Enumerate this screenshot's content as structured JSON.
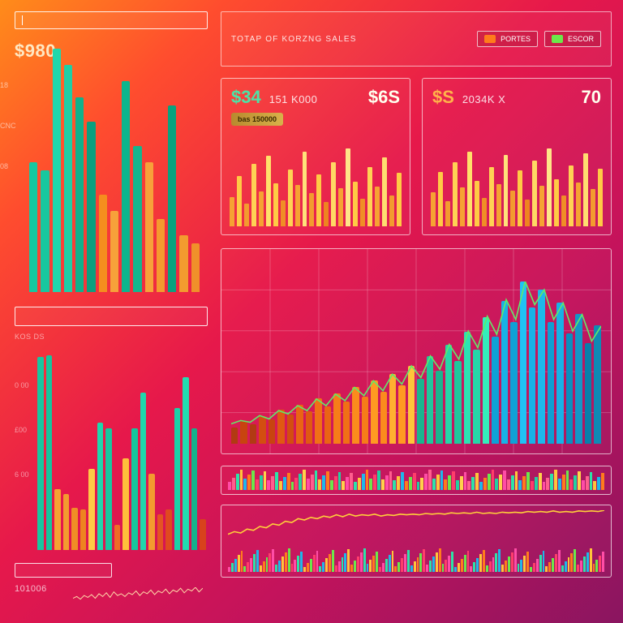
{
  "background_gradient": [
    "#ff8c1a",
    "#ff4d2e",
    "#e6184b",
    "#c3135c",
    "#8a1560"
  ],
  "left": {
    "search_placeholder": "",
    "kpi": "$980",
    "kpi_sub": "",
    "y_labels": [
      "18",
      "CNC",
      "08"
    ],
    "divider_label": "KOS  DS",
    "y_labels2": [
      "0 00",
      "£00",
      "6 00"
    ],
    "footer_label": "101006",
    "footer_spark": {
      "points": [
        4,
        6,
        3,
        7,
        5,
        8,
        4,
        9,
        6,
        10,
        5,
        11,
        7,
        9,
        6,
        10,
        8,
        12,
        7,
        11,
        9,
        13,
        8,
        12,
        10,
        14,
        9,
        13,
        11,
        15,
        10,
        14,
        12,
        16,
        11,
        15
      ],
      "stroke": "#ffd8a8",
      "width": 1
    },
    "chart_top": {
      "type": "bar",
      "values": [
        160,
        150,
        300,
        280,
        240,
        210,
        120,
        100,
        260,
        180,
        160,
        90,
        230,
        70,
        60
      ],
      "colors": [
        "#15c8a0",
        "#18c79f",
        "#1fd7ac",
        "#1fcfa5",
        "#0fb28b",
        "#0aa07f",
        "#f58e1e",
        "#f7a13a",
        "#0cb58d",
        "#14b68e",
        "#f7a13a",
        "#f59a2e",
        "#08a37f",
        "#f39b2f",
        "#f0902a"
      ]
    },
    "chart_bottom": {
      "type": "bar",
      "values": [
        228,
        230,
        72,
        66,
        50,
        48,
        96,
        150,
        144,
        30,
        108,
        144,
        186,
        90,
        42,
        48,
        168,
        204,
        144,
        36
      ],
      "colors": [
        "#18c79f",
        "#16c59d",
        "#f6a233",
        "#f39b2f",
        "#f08e26",
        "#ee8420",
        "#ffca45",
        "#1fd7ac",
        "#18c79f",
        "#ef6b27",
        "#ffbf3b",
        "#16c59d",
        "#1fd7ac",
        "#f39b2f",
        "#e45423",
        "#e04a1f",
        "#1ad2a8",
        "#22dcb0",
        "#14b28c",
        "#d8421c"
      ]
    }
  },
  "header": {
    "title": "TOTAP OF KORZNG SALES",
    "chips": [
      {
        "color": "#ff7b1c",
        "label": "PORTES"
      },
      {
        "color": "#6be84a",
        "label": "ESCOR"
      }
    ]
  },
  "cards": [
    {
      "kpi": "$34",
      "mid": "151 K000",
      "side": "$6S",
      "pill": "bas 150000",
      "kpi_color": "#4be3a6",
      "bars": {
        "values": [
          34,
          58,
          26,
          72,
          40,
          82,
          50,
          30,
          66,
          48,
          86,
          38,
          60,
          28,
          74,
          44,
          90,
          52,
          32,
          68,
          46,
          80,
          36,
          62
        ],
        "colors": [
          "#f6a233",
          "#ffca45",
          "#f39b2f",
          "#ffd254",
          "#f6a233",
          "#ffe06a",
          "#ffca45",
          "#f08e26",
          "#ffd254",
          "#f6a233",
          "#ffe27a",
          "#f39b2f",
          "#ffca45",
          "#ee8420",
          "#ffd864",
          "#f6a233",
          "#ffe588",
          "#ffca45",
          "#f08e26",
          "#ffd254",
          "#f6a233",
          "#ffdd70",
          "#f39b2f",
          "#ffca45"
        ]
      }
    },
    {
      "kpi": "$S",
      "mid": "2034K X",
      "side": "70",
      "pill": "",
      "kpi_color": "#ffb24a",
      "bars": {
        "values": [
          40,
          64,
          30,
          76,
          46,
          88,
          54,
          34,
          70,
          50,
          84,
          42,
          66,
          32,
          78,
          48,
          92,
          56,
          36,
          72,
          52,
          86,
          44,
          68
        ],
        "colors": [
          "#f6a233",
          "#ffca45",
          "#f39b2f",
          "#ffd254",
          "#f6a233",
          "#ffe06a",
          "#ffca45",
          "#f08e26",
          "#ffd254",
          "#f6a233",
          "#ffe27a",
          "#f39b2f",
          "#ffca45",
          "#ee8420",
          "#ffd864",
          "#f6a233",
          "#ffe588",
          "#ffca45",
          "#f08e26",
          "#ffd254",
          "#f6a233",
          "#ffdd70",
          "#f39b2f",
          "#ffca45"
        ]
      }
    }
  ],
  "main_chart": {
    "type": "bar+line",
    "grid": {
      "rows": 5,
      "cols": 8,
      "color": "rgba(255,255,255,.22)"
    },
    "bars": {
      "values": [
        20,
        28,
        24,
        34,
        30,
        42,
        36,
        48,
        40,
        56,
        46,
        62,
        52,
        70,
        58,
        78,
        64,
        86,
        72,
        96,
        80,
        108,
        90,
        122,
        102,
        138,
        116,
        156,
        132,
        176,
        150,
        200,
        168,
        190,
        150,
        174,
        136,
        160,
        124,
        146
      ],
      "colors": [
        "#b23a12",
        "#c8440f",
        "#b23a12",
        "#d34e10",
        "#c8440f",
        "#e05912",
        "#d34e10",
        "#ea6414",
        "#e05912",
        "#f07016",
        "#ea6414",
        "#f67d19",
        "#f07016",
        "#fb8b1d",
        "#f67d19",
        "#ff9a22",
        "#fb8b1d",
        "#ffb030",
        "#ff9a22",
        "#ffc53a",
        "#1ab58e",
        "#20c79c",
        "#1ab58e",
        "#26d6a8",
        "#20c79c",
        "#2ce3b2",
        "#26d6a8",
        "#34edbb",
        "#0fa1d6",
        "#18b2e6",
        "#0fa1d6",
        "#20c2f4",
        "#18b2e6",
        "#1eb8ea",
        "#0f9fd2",
        "#18b2e6",
        "#0a8fbe",
        "#1496c6",
        "#087faa",
        "#0f8ab4"
      ]
    },
    "line": {
      "points": [
        24,
        28,
        26,
        34,
        30,
        40,
        36,
        46,
        40,
        54,
        46,
        60,
        52,
        68,
        58,
        76,
        64,
        84,
        72,
        94,
        80,
        106,
        90,
        120,
        102,
        136,
        116,
        154,
        132,
        174,
        150,
        196,
        168,
        186,
        150,
        170,
        136,
        156,
        124,
        142
      ],
      "stroke": "#63e86a",
      "width": 1.6
    }
  },
  "strip": {
    "count": 96,
    "palette": [
      "#ff4da6",
      "#ff5e8e",
      "#2de3a8",
      "#ffc53a",
      "#1eb8ea",
      "#ff7b1c",
      "#6be84a",
      "#ff3d6b",
      "#23d1a0",
      "#ffd24a"
    ],
    "min_h": 10,
    "max_h": 26
  },
  "bottom": {
    "line": {
      "points": [
        18,
        22,
        20,
        26,
        24,
        30,
        28,
        34,
        32,
        38,
        36,
        42,
        40,
        44,
        42,
        46,
        44,
        48,
        45,
        49,
        46,
        48,
        47,
        49,
        46,
        48,
        47,
        49,
        48,
        49,
        48,
        50,
        49,
        50,
        49,
        51,
        50,
        51,
        50,
        52,
        50,
        51,
        50,
        52,
        51,
        52,
        51,
        53,
        52,
        53,
        52,
        54,
        52,
        53,
        52,
        54,
        53,
        54,
        53,
        55
      ],
      "stroke": "#ffcf3a",
      "width": 1.6
    },
    "ticks": {
      "count": 120,
      "palette": [
        "#ff4da6",
        "#2de3a8",
        "#1eb8ea",
        "#ffc53a",
        "#ff7b1c",
        "#6be84a",
        "#ff3d6b"
      ],
      "min_h": 6,
      "max_h": 30
    }
  }
}
